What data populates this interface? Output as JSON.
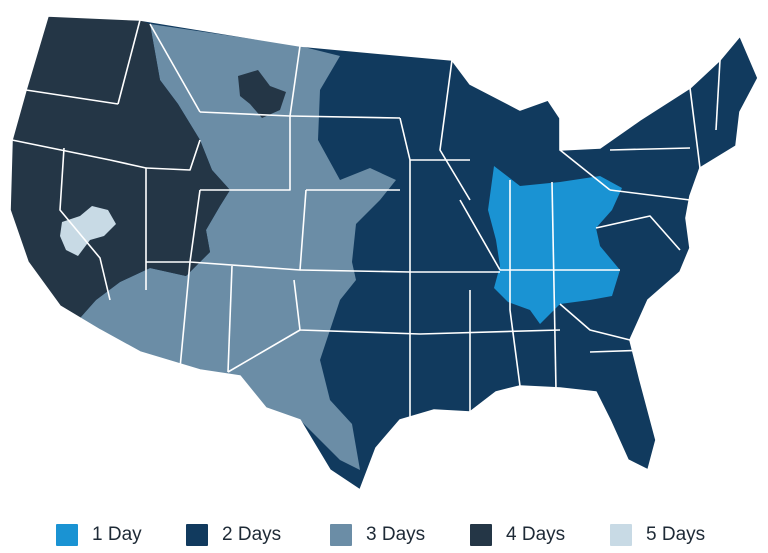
{
  "legend": {
    "items": [
      {
        "label": "1 Day",
        "color": "#1a93d3"
      },
      {
        "label": "2 Days",
        "color": "#113a5e"
      },
      {
        "label": "3 Days",
        "color": "#6b8da6"
      },
      {
        "label": "4 Days",
        "color": "#243646"
      },
      {
        "label": "5 Days",
        "color": "#c8dae5"
      }
    ]
  },
  "map": {
    "zones": [
      {
        "name": "zone-4-days-west",
        "level": "4 Days"
      },
      {
        "name": "zone-3-days-mountain-plains",
        "level": "3 Days"
      },
      {
        "name": "zone-2-days-east",
        "level": "2 Days"
      },
      {
        "name": "zone-1-day-ohio-valley",
        "level": "1 Day"
      },
      {
        "name": "zone-5-days-nevada",
        "level": "5 Days"
      }
    ],
    "state_border_color": "#ffffff"
  }
}
